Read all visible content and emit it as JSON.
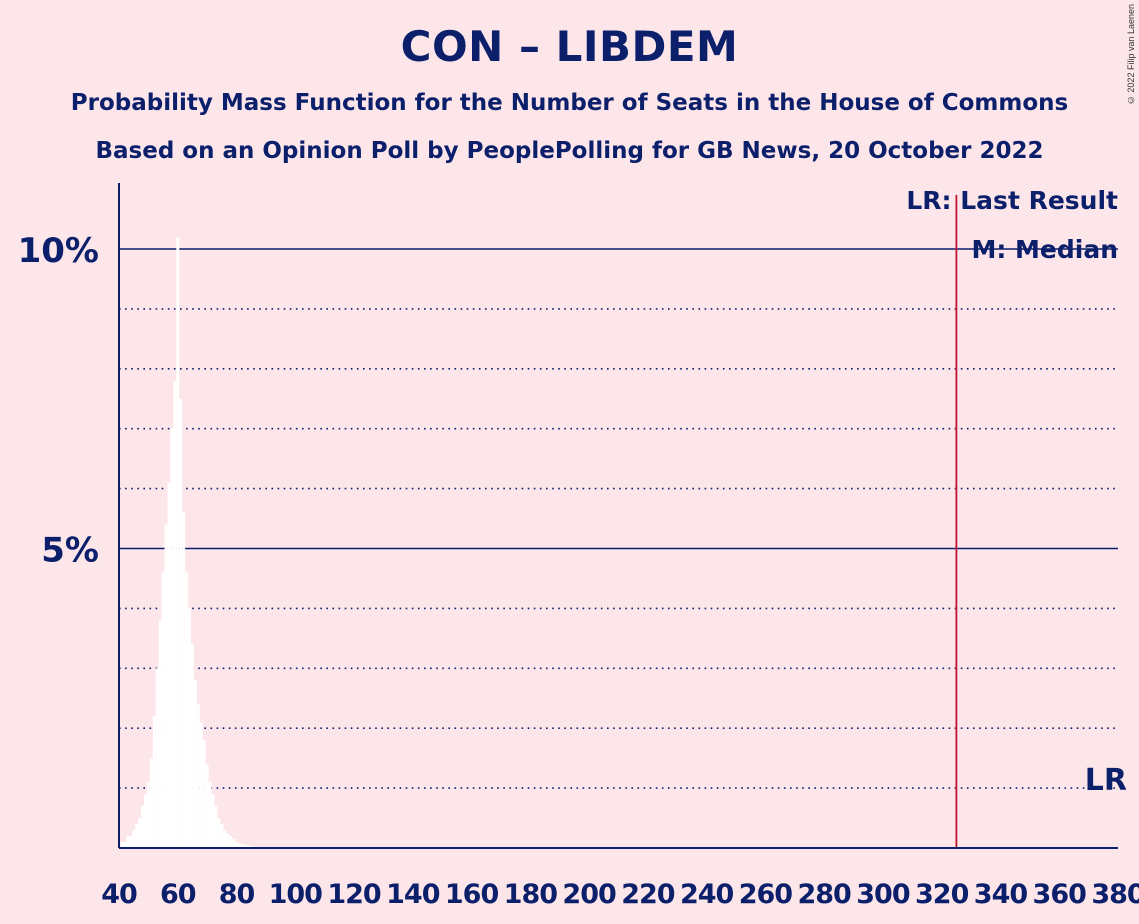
{
  "header": {
    "title": "CON – LIBDEM",
    "subtitle1": "Probability Mass Function for the Number of Seats in the House of Commons",
    "subtitle2": "Based on an Opinion Poll by PeoplePolling for GB News, 20 October 2022",
    "copyright": "© 2022 Filip van Laenen"
  },
  "chart_data": {
    "type": "bar",
    "title": "CON – LIBDEM",
    "xlabel": "",
    "ylabel": "",
    "xlim": [
      40,
      380
    ],
    "ylim": [
      0,
      11
    ],
    "x_ticks": [
      "40",
      "60",
      "80",
      "100",
      "120",
      "140",
      "160",
      "180",
      "200",
      "220",
      "240",
      "260",
      "280",
      "300",
      "320",
      "340",
      "360",
      "380"
    ],
    "y_ticks": [
      {
        "value": 5,
        "label": "5%"
      },
      {
        "value": 10,
        "label": "10%"
      }
    ],
    "minor_gridlines": [
      1,
      2,
      3,
      4,
      6,
      7,
      8,
      9
    ],
    "bars": [
      {
        "x": 41,
        "y": 0.1
      },
      {
        "x": 42,
        "y": 0.1
      },
      {
        "x": 43,
        "y": 0.2
      },
      {
        "x": 44,
        "y": 0.2
      },
      {
        "x": 45,
        "y": 0.3
      },
      {
        "x": 46,
        "y": 0.4
      },
      {
        "x": 47,
        "y": 0.5
      },
      {
        "x": 48,
        "y": 0.7
      },
      {
        "x": 49,
        "y": 0.9
      },
      {
        "x": 50,
        "y": 1.1
      },
      {
        "x": 51,
        "y": 1.5
      },
      {
        "x": 52,
        "y": 2.2
      },
      {
        "x": 53,
        "y": 3.0
      },
      {
        "x": 54,
        "y": 3.8
      },
      {
        "x": 55,
        "y": 4.6
      },
      {
        "x": 56,
        "y": 5.4
      },
      {
        "x": 57,
        "y": 6.1
      },
      {
        "x": 58,
        "y": 7.0
      },
      {
        "x": 59,
        "y": 7.8
      },
      {
        "x": 60,
        "y": 10.2
      },
      {
        "x": 61,
        "y": 7.5
      },
      {
        "x": 62,
        "y": 5.6
      },
      {
        "x": 63,
        "y": 4.6
      },
      {
        "x": 64,
        "y": 4.0
      },
      {
        "x": 65,
        "y": 3.4
      },
      {
        "x": 66,
        "y": 2.8
      },
      {
        "x": 67,
        "y": 2.4
      },
      {
        "x": 68,
        "y": 2.1
      },
      {
        "x": 69,
        "y": 1.8
      },
      {
        "x": 70,
        "y": 1.4
      },
      {
        "x": 71,
        "y": 1.1
      },
      {
        "x": 72,
        "y": 0.9
      },
      {
        "x": 73,
        "y": 0.7
      },
      {
        "x": 74,
        "y": 0.5
      },
      {
        "x": 75,
        "y": 0.4
      },
      {
        "x": 76,
        "y": 0.3
      },
      {
        "x": 77,
        "y": 0.25
      },
      {
        "x": 78,
        "y": 0.2
      },
      {
        "x": 79,
        "y": 0.15
      },
      {
        "x": 80,
        "y": 0.1
      },
      {
        "x": 81,
        "y": 0.08
      },
      {
        "x": 82,
        "y": 0.06
      },
      {
        "x": 83,
        "y": 0.05
      },
      {
        "x": 84,
        "y": 0.04
      },
      {
        "x": 85,
        "y": 0.03
      },
      {
        "x": 86,
        "y": 0.02
      },
      {
        "x": 87,
        "y": 0.01
      }
    ],
    "median": 60,
    "last_result": 325,
    "legend": {
      "lr": "LR: Last Result",
      "m": "M: Median",
      "position": "top-right"
    },
    "lr_marker": "LR",
    "colors": {
      "axis": "#0c1f6b",
      "bar": "#ffffff",
      "last_result_line": "#c0122f",
      "background": "#fde6ea"
    }
  }
}
